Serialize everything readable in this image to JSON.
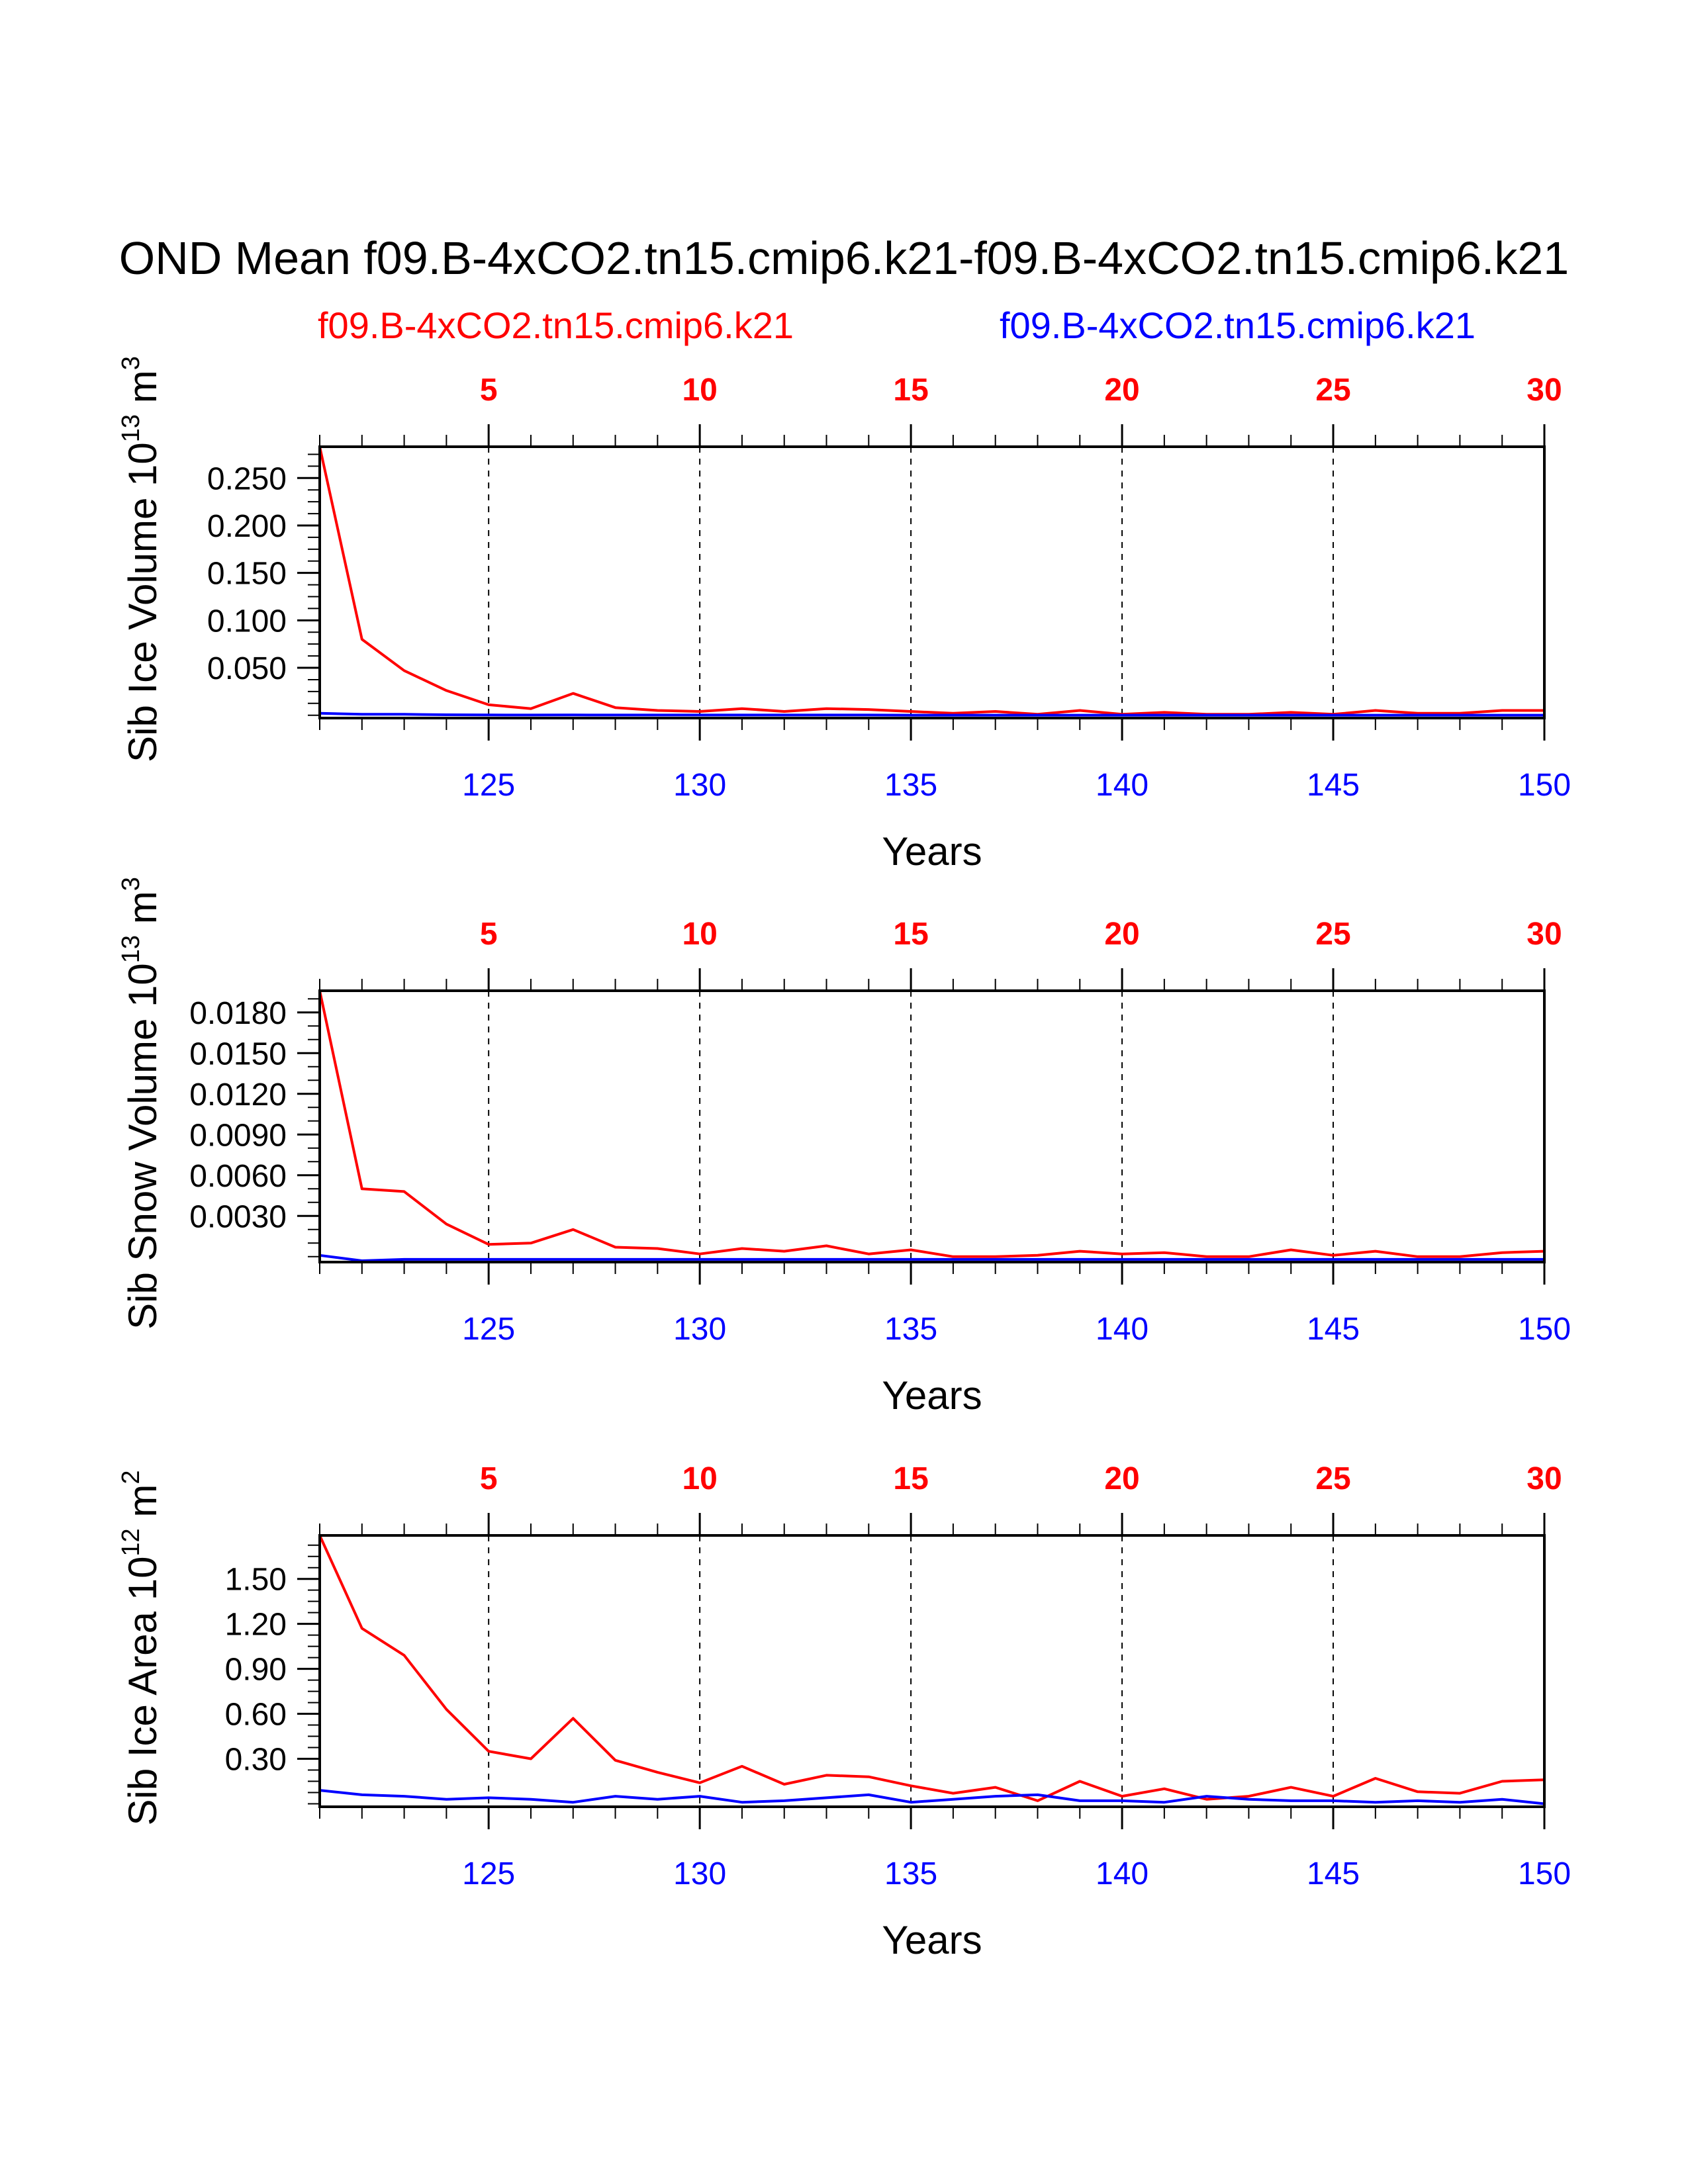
{
  "figure": {
    "title": "OND Mean f09.B-4xCO2.tn15.cmip6.k21-f09.B-4xCO2.tn15.cmip6.k21",
    "legend": [
      {
        "label": "f09.B-4xCO2.tn15.cmip6.k21",
        "color": "#ff0000"
      },
      {
        "label": "f09.B-4xCO2.tn15.cmip6.k21",
        "color": "#0000ff"
      }
    ]
  },
  "chart_data": [
    {
      "type": "line",
      "ylabel_main": "Sib Ice Volume 10",
      "ylabel_exp": "13",
      "ylabel_unit": " m",
      "ylabel_unit_exp": "3",
      "xlabel": "Years",
      "xlim": [
        121,
        150
      ],
      "ylim": [
        -0.003,
        0.283
      ],
      "y_ticks": [
        "0.050",
        "0.100",
        "0.150",
        "0.200",
        "0.250"
      ],
      "y_minor_step": 0.0125,
      "x_ticks": [
        "125",
        "130",
        "135",
        "140",
        "145",
        "150"
      ],
      "top_ticks": [
        "5",
        "10",
        "15",
        "20",
        "25",
        "30"
      ],
      "x": [
        121,
        122,
        123,
        124,
        125,
        126,
        127,
        128,
        129,
        130,
        131,
        132,
        133,
        134,
        135,
        136,
        137,
        138,
        139,
        140,
        141,
        142,
        143,
        144,
        145,
        146,
        147,
        148,
        149,
        150
      ],
      "series": [
        {
          "name": "f09.B-4xCO2.tn15.cmip6.k21",
          "color": "#ff0000",
          "values": [
            0.283,
            0.08,
            0.047,
            0.026,
            0.011,
            0.007,
            0.023,
            0.008,
            0.005,
            0.004,
            0.007,
            0.004,
            0.007,
            0.006,
            0.004,
            0.002,
            0.004,
            0.001,
            0.005,
            0.001,
            0.003,
            0.001,
            0.001,
            0.003,
            0.001,
            0.005,
            0.002,
            0.002,
            0.005,
            0.005
          ]
        },
        {
          "name": "f09.B-4xCO2.tn15.cmip6.k21",
          "color": "#0000ff",
          "values": [
            0.002,
            0.001,
            0.001,
            0.0005,
            0.0003,
            0.0002,
            0.0003,
            0.0002,
            0.0002,
            0.0002,
            0.0002,
            0.0002,
            0.0002,
            0.0002,
            0.0001,
            0.0001,
            0.0001,
            0.0001,
            0.0001,
            0.0001,
            0.0001,
            0.0001,
            0.0001,
            0.0001,
            0.0001,
            0.0001,
            0.0001,
            0.0001,
            0.0001,
            0.0001
          ]
        }
      ]
    },
    {
      "type": "line",
      "ylabel_main": "Sib Snow Volume 10",
      "ylabel_exp": "13",
      "ylabel_unit": " m",
      "ylabel_unit_exp": "3",
      "xlabel": "Years",
      "xlim": [
        121,
        150
      ],
      "ylim": [
        -0.0004,
        0.0196
      ],
      "y_ticks": [
        "0.0030",
        "0.0060",
        "0.0090",
        "0.0120",
        "0.0150",
        "0.0180"
      ],
      "y_minor_step": 0.001,
      "x_ticks": [
        "125",
        "130",
        "135",
        "140",
        "145",
        "150"
      ],
      "top_ticks": [
        "5",
        "10",
        "15",
        "20",
        "25",
        "30"
      ],
      "x": [
        121,
        122,
        123,
        124,
        125,
        126,
        127,
        128,
        129,
        130,
        131,
        132,
        133,
        134,
        135,
        136,
        137,
        138,
        139,
        140,
        141,
        142,
        143,
        144,
        145,
        146,
        147,
        148,
        149,
        150
      ],
      "series": [
        {
          "name": "f09.B-4xCO2.tn15.cmip6.k21",
          "color": "#ff0000",
          "values": [
            0.0196,
            0.005,
            0.0048,
            0.0024,
            0.0009,
            0.001,
            0.002,
            0.0007,
            0.0006,
            0.0002,
            0.0006,
            0.0004,
            0.0008,
            0.0002,
            0.0005,
            0.0,
            0.0,
            0.0001,
            0.0004,
            0.0002,
            0.0003,
            0.0,
            0.0,
            0.0005,
            0.0001,
            0.0004,
            0.0,
            0.0,
            0.0003,
            0.0004
          ]
        },
        {
          "name": "f09.B-4xCO2.tn15.cmip6.k21",
          "color": "#0000ff",
          "values": [
            0.0001,
            -0.0003,
            -0.0002,
            -0.0002,
            -0.0002,
            -0.0002,
            -0.0002,
            -0.0002,
            -0.0002,
            -0.0002,
            -0.0002,
            -0.0002,
            -0.0002,
            -0.0002,
            -0.0002,
            -0.0002,
            -0.0002,
            -0.0002,
            -0.0002,
            -0.0002,
            -0.0002,
            -0.0002,
            -0.0002,
            -0.0002,
            -0.0002,
            -0.0002,
            -0.0002,
            -0.0002,
            -0.0002,
            -0.0002
          ]
        }
      ]
    },
    {
      "type": "line",
      "ylabel_main": "Sib Ice Area 10",
      "ylabel_exp": "12",
      "ylabel_unit": " m",
      "ylabel_unit_exp": "2",
      "xlabel": "Years",
      "xlim": [
        121,
        150
      ],
      "ylim": [
        -0.02,
        1.79
      ],
      "y_ticks": [
        "0.30",
        "0.60",
        "0.90",
        "1.20",
        "1.50"
      ],
      "y_minor_step": 0.075,
      "x_ticks": [
        "125",
        "130",
        "135",
        "140",
        "145",
        "150"
      ],
      "top_ticks": [
        "5",
        "10",
        "15",
        "20",
        "25",
        "30"
      ],
      "x": [
        121,
        122,
        123,
        124,
        125,
        126,
        127,
        128,
        129,
        130,
        131,
        132,
        133,
        134,
        135,
        136,
        137,
        138,
        139,
        140,
        141,
        142,
        143,
        144,
        145,
        146,
        147,
        148,
        149,
        150
      ],
      "series": [
        {
          "name": "f09.B-4xCO2.tn15.cmip6.k21",
          "color": "#ff0000",
          "values": [
            1.79,
            1.17,
            0.99,
            0.63,
            0.35,
            0.3,
            0.57,
            0.29,
            0.21,
            0.14,
            0.25,
            0.13,
            0.19,
            0.18,
            0.12,
            0.07,
            0.11,
            0.02,
            0.15,
            0.05,
            0.1,
            0.03,
            0.05,
            0.11,
            0.05,
            0.17,
            0.08,
            0.07,
            0.15,
            0.16
          ]
        },
        {
          "name": "f09.B-4xCO2.tn15.cmip6.k21",
          "color": "#0000ff",
          "values": [
            0.09,
            0.06,
            0.05,
            0.03,
            0.04,
            0.03,
            0.01,
            0.05,
            0.03,
            0.05,
            0.01,
            0.02,
            0.04,
            0.06,
            0.01,
            0.03,
            0.05,
            0.06,
            0.02,
            0.02,
            0.01,
            0.05,
            0.03,
            0.02,
            0.02,
            0.01,
            0.02,
            0.01,
            0.03,
            0.0
          ]
        }
      ]
    }
  ]
}
